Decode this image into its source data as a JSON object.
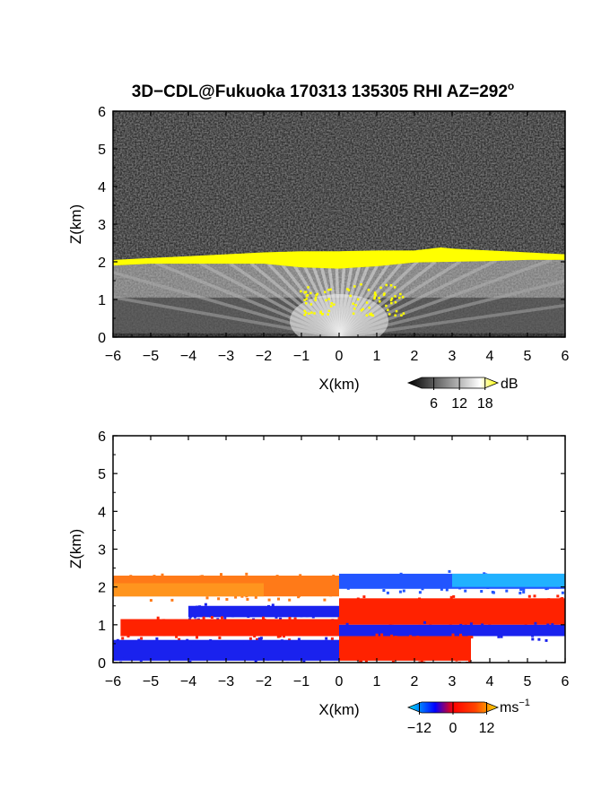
{
  "title": "3D−CDL@Fukuoka 170313 135305 RHI AZ=292",
  "title_sup": "o",
  "chart_data": [
    {
      "type": "heatmap",
      "panel": "reflectivity",
      "xlabel": "X(km)",
      "ylabel": "Z(km)",
      "xlim": [
        -6,
        6
      ],
      "ylim": [
        0,
        6
      ],
      "xticks": [
        -6,
        -5,
        -4,
        -3,
        -2,
        -1,
        0,
        1,
        2,
        3,
        4,
        5,
        6
      ],
      "yticks": [
        0,
        1,
        2,
        3,
        4,
        5,
        6
      ],
      "colorbar": {
        "unit": "dB",
        "tick_labels": [
          "6",
          "12",
          "18"
        ],
        "ticks": [
          6,
          12,
          18
        ],
        "range": [
          0,
          21
        ],
        "colors": [
          "#000000",
          "#ffffff",
          "#ffff00"
        ]
      },
      "features": {
        "cloud_base_top_km": [
          [
            -6,
            2.05
          ],
          [
            -5,
            2.1
          ],
          [
            -4,
            2.15
          ],
          [
            -3,
            2.2
          ],
          [
            -2,
            2.25
          ],
          [
            -1,
            2.28
          ],
          [
            0,
            2.28
          ],
          [
            1,
            2.3
          ],
          [
            2,
            2.3
          ],
          [
            2.7,
            2.38
          ],
          [
            3,
            2.35
          ],
          [
            4,
            2.3
          ],
          [
            5,
            2.25
          ],
          [
            6,
            2.2
          ]
        ],
        "cloud_base_bottom_km": [
          [
            -6,
            1.9
          ],
          [
            -5,
            1.95
          ],
          [
            -4,
            1.95
          ],
          [
            -3,
            1.95
          ],
          [
            -2,
            1.95
          ],
          [
            -1,
            1.85
          ],
          [
            0,
            1.82
          ],
          [
            1,
            1.88
          ],
          [
            2,
            1.98
          ],
          [
            3,
            2.0
          ],
          [
            4,
            2.02
          ],
          [
            5,
            2.05
          ],
          [
            6,
            2.05
          ]
        ],
        "background_level_db": 2,
        "cloud_level_db": 20
      }
    },
    {
      "type": "heatmap",
      "panel": "doppler_velocity",
      "xlabel": "X(km)",
      "ylabel": "Z(km)",
      "xlim": [
        -6,
        6
      ],
      "ylim": [
        0,
        6
      ],
      "xticks": [
        -6,
        -5,
        -4,
        -3,
        -2,
        -1,
        0,
        1,
        2,
        3,
        4,
        5,
        6
      ],
      "yticks": [
        0,
        1,
        2,
        3,
        4,
        5,
        6
      ],
      "colorbar": {
        "unit": "ms",
        "unit_sup": "−1",
        "tick_labels": [
          "−12",
          "0",
          "12"
        ],
        "ticks": [
          -12,
          0,
          12
        ],
        "range": [
          -16,
          16
        ],
        "colors": [
          "#00ddff",
          "#0000ff",
          "#ff0000",
          "#ffcc00"
        ]
      },
      "layers": [
        {
          "x": [
            -6,
            0
          ],
          "z": [
            1.75,
            2.3
          ],
          "velocity_ms": 10
        },
        {
          "x": [
            0,
            6
          ],
          "z": [
            1.95,
            2.35
          ],
          "velocity_ms": -10
        },
        {
          "x": [
            -4,
            0
          ],
          "z": [
            1.2,
            1.5
          ],
          "velocity_ms": -14
        },
        {
          "x": [
            -5.8,
            0
          ],
          "z": [
            0.7,
            1.15
          ],
          "velocity_ms": 6
        },
        {
          "x": [
            0,
            6
          ],
          "z": [
            1.0,
            1.7
          ],
          "velocity_ms": 6
        },
        {
          "x": [
            0,
            6
          ],
          "z": [
            0.7,
            1.0
          ],
          "velocity_ms": -14
        },
        {
          "x": [
            -6,
            0
          ],
          "z": [
            0.05,
            0.6
          ],
          "velocity_ms": -14
        },
        {
          "x": [
            0,
            3.5
          ],
          "z": [
            0.05,
            0.7
          ],
          "velocity_ms": 6
        }
      ]
    }
  ]
}
